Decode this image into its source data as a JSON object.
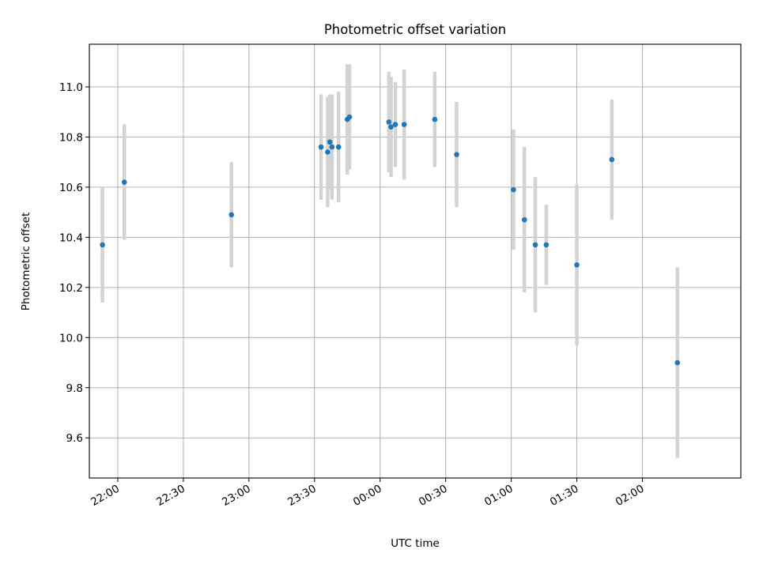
{
  "chart_data": {
    "type": "scatter",
    "title": "Photometric offset variation",
    "xlabel": "UTC time",
    "ylabel": "Photometric offset",
    "grid": true,
    "xlim": [
      "21:47",
      "02:45"
    ],
    "ylim": [
      9.44,
      11.17
    ],
    "x_ticks": [
      "22:00",
      "22:30",
      "23:00",
      "23:30",
      "00:00",
      "00:30",
      "01:00",
      "01:30",
      "02:00"
    ],
    "y_ticks": [
      "9.6",
      "9.8",
      "10.0",
      "10.2",
      "10.4",
      "10.6",
      "10.8",
      "11.0"
    ],
    "colors": {
      "points": "#1f77b4",
      "error_bars": "#d3d3d3",
      "grid": "#b0b0b0"
    },
    "points": [
      {
        "x": "21:53",
        "y": 10.37,
        "err": 0.23
      },
      {
        "x": "22:03",
        "y": 10.62,
        "err": 0.23
      },
      {
        "x": "22:52",
        "y": 10.49,
        "err": 0.21
      },
      {
        "x": "23:33",
        "y": 10.76,
        "err": 0.21
      },
      {
        "x": "23:36",
        "y": 10.74,
        "err": 0.22
      },
      {
        "x": "23:37",
        "y": 10.78,
        "err": 0.19
      },
      {
        "x": "23:38",
        "y": 10.76,
        "err": 0.21
      },
      {
        "x": "23:41",
        "y": 10.76,
        "err": 0.22
      },
      {
        "x": "23:45",
        "y": 10.87,
        "err": 0.22
      },
      {
        "x": "23:46",
        "y": 10.88,
        "err": 0.21
      },
      {
        "x": "00:04",
        "y": 10.86,
        "err": 0.2
      },
      {
        "x": "00:05",
        "y": 10.84,
        "err": 0.2
      },
      {
        "x": "00:07",
        "y": 10.85,
        "err": 0.17
      },
      {
        "x": "00:11",
        "y": 10.85,
        "err": 0.22
      },
      {
        "x": "00:25",
        "y": 10.87,
        "err": 0.19
      },
      {
        "x": "00:35",
        "y": 10.73,
        "err": 0.21
      },
      {
        "x": "01:01",
        "y": 10.59,
        "err": 0.24
      },
      {
        "x": "01:06",
        "y": 10.47,
        "err": 0.29
      },
      {
        "x": "01:11",
        "y": 10.37,
        "err": 0.27
      },
      {
        "x": "01:16",
        "y": 10.37,
        "err": 0.16
      },
      {
        "x": "01:30",
        "y": 10.29,
        "err": 0.32
      },
      {
        "x": "01:46",
        "y": 10.71,
        "err": 0.24
      },
      {
        "x": "02:16",
        "y": 9.9,
        "err": 0.38
      }
    ]
  }
}
